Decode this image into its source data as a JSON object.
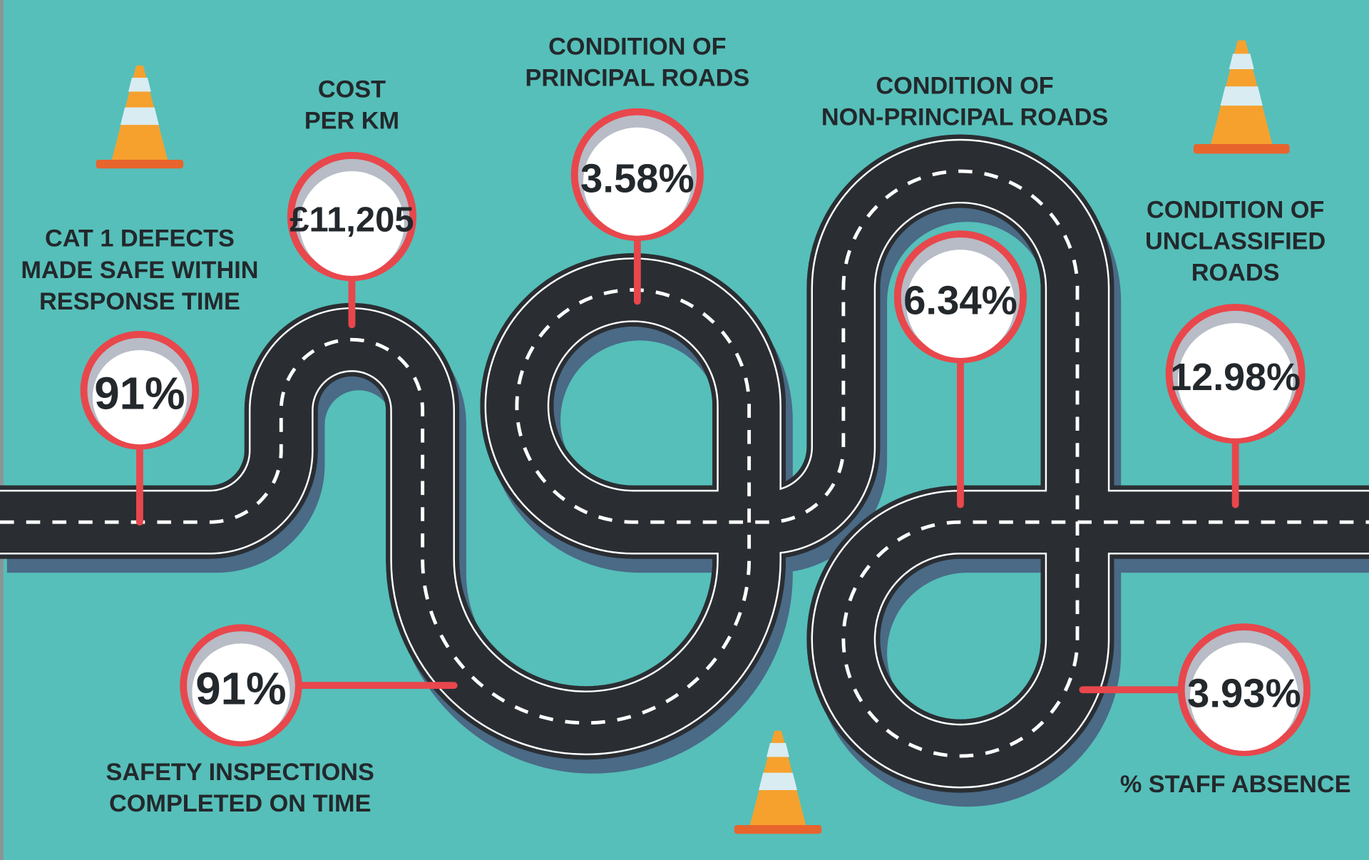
{
  "metrics": [
    {
      "label": [
        "CAT 1 DEFECTS",
        "MADE SAFE WITHIN",
        "RESPONSE TIME"
      ],
      "value": "91%"
    },
    {
      "label": [
        "COST",
        "PER KM"
      ],
      "value": "£11,205"
    },
    {
      "label": [
        "CONDITION OF",
        "PRINCIPAL ROADS"
      ],
      "value": "3.58%"
    },
    {
      "label": [
        "CONDITION OF",
        "NON-PRINCIPAL ROADS"
      ],
      "value": "6.34%"
    },
    {
      "label": [
        "CONDITION OF",
        "UNCLASSIFIED",
        "ROADS"
      ],
      "value": "12.98%"
    },
    {
      "label": [
        "SAFETY INSPECTIONS",
        "COMPLETED ON TIME"
      ],
      "value": "91%"
    },
    {
      "label": [
        "% STAFF ABSENCE"
      ],
      "value": "3.93%"
    }
  ]
}
